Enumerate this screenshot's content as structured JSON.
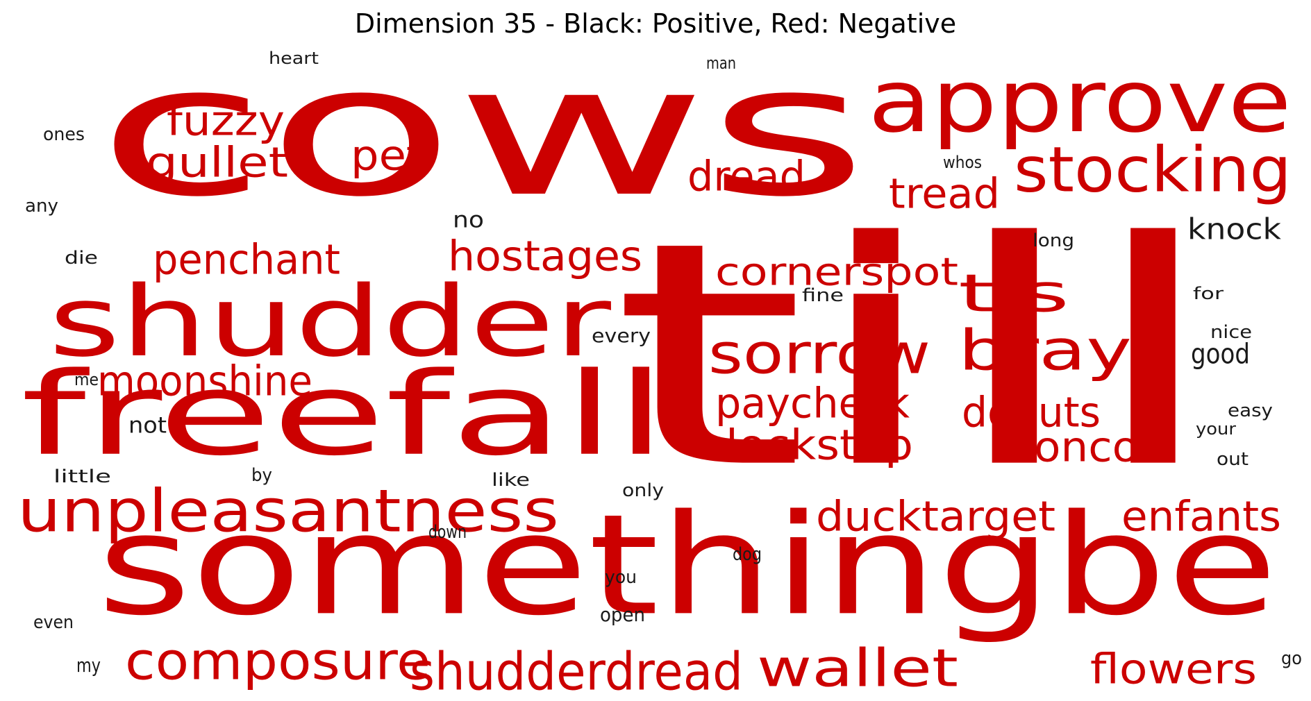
{
  "chart_data": {
    "type": "wordcloud",
    "title": "Dimension 35 - Black: Positive, Red: Negative",
    "colors": {
      "positive": "#1a1a1a",
      "negative": "#cc0000"
    },
    "words": [
      {
        "text": "cows",
        "polarity": "negative"
      },
      {
        "text": "till",
        "polarity": "negative"
      },
      {
        "text": "somethingbe",
        "polarity": "negative"
      },
      {
        "text": "freefall",
        "polarity": "negative"
      },
      {
        "text": "shudder",
        "polarity": "negative"
      },
      {
        "text": "approve",
        "polarity": "negative"
      },
      {
        "text": "unpleasantness",
        "polarity": "negative"
      },
      {
        "text": "stocking",
        "polarity": "negative"
      },
      {
        "text": "composure",
        "polarity": "negative"
      },
      {
        "text": "shudderdread",
        "polarity": "negative"
      },
      {
        "text": "wallet",
        "polarity": "negative"
      },
      {
        "text": "sorrow",
        "polarity": "negative"
      },
      {
        "text": "bray",
        "polarity": "negative"
      },
      {
        "text": "tis",
        "polarity": "negative"
      },
      {
        "text": "moonshine",
        "polarity": "negative"
      },
      {
        "text": "ducktarget",
        "polarity": "negative"
      },
      {
        "text": "paycheck",
        "polarity": "negative"
      },
      {
        "text": "lockstep",
        "polarity": "negative"
      },
      {
        "text": "donuts",
        "polarity": "negative"
      },
      {
        "text": "bronco",
        "polarity": "negative"
      },
      {
        "text": "enfants",
        "polarity": "negative"
      },
      {
        "text": "flowers",
        "polarity": "negative"
      },
      {
        "text": "hostages",
        "polarity": "negative"
      },
      {
        "text": "penchant",
        "polarity": "negative"
      },
      {
        "text": "cornerspot",
        "polarity": "negative"
      },
      {
        "text": "fuzzy",
        "polarity": "negative"
      },
      {
        "text": "gullet",
        "polarity": "negative"
      },
      {
        "text": "pet",
        "polarity": "negative"
      },
      {
        "text": "dread",
        "polarity": "negative"
      },
      {
        "text": "tread",
        "polarity": "negative"
      },
      {
        "text": "knock",
        "polarity": "positive"
      },
      {
        "text": "good",
        "polarity": "positive"
      },
      {
        "text": "no",
        "polarity": "positive"
      },
      {
        "text": "not",
        "polarity": "positive"
      },
      {
        "text": "heart",
        "polarity": "positive"
      },
      {
        "text": "man",
        "polarity": "positive"
      },
      {
        "text": "ones",
        "polarity": "positive"
      },
      {
        "text": "whos",
        "polarity": "positive"
      },
      {
        "text": "any",
        "polarity": "positive"
      },
      {
        "text": "long",
        "polarity": "positive"
      },
      {
        "text": "die",
        "polarity": "positive"
      },
      {
        "text": "fine",
        "polarity": "positive"
      },
      {
        "text": "for",
        "polarity": "positive"
      },
      {
        "text": "every",
        "polarity": "positive"
      },
      {
        "text": "nice",
        "polarity": "positive"
      },
      {
        "text": "me",
        "polarity": "positive"
      },
      {
        "text": "easy",
        "polarity": "positive"
      },
      {
        "text": "your",
        "polarity": "positive"
      },
      {
        "text": "little",
        "polarity": "positive"
      },
      {
        "text": "by",
        "polarity": "positive"
      },
      {
        "text": "like",
        "polarity": "positive"
      },
      {
        "text": "only",
        "polarity": "positive"
      },
      {
        "text": "out",
        "polarity": "positive"
      },
      {
        "text": "down",
        "polarity": "positive"
      },
      {
        "text": "dog",
        "polarity": "positive"
      },
      {
        "text": "you",
        "polarity": "positive"
      },
      {
        "text": "open",
        "polarity": "positive"
      },
      {
        "text": "even",
        "polarity": "positive"
      },
      {
        "text": "my",
        "polarity": "positive"
      },
      {
        "text": "go",
        "polarity": "positive"
      }
    ]
  }
}
